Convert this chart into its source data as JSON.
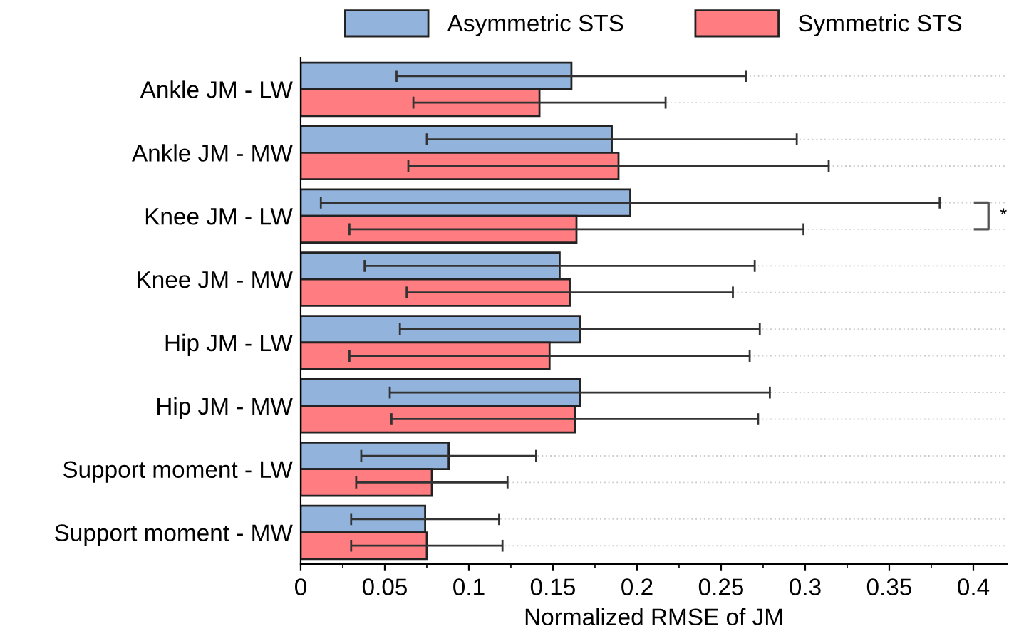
{
  "chart_data": {
    "type": "bar",
    "orientation": "horizontal",
    "xlabel": "Normalized RMSE of JM",
    "categories": [
      "Ankle JM - LW",
      "Ankle JM - MW",
      "Knee JM - LW",
      "Knee JM - MW",
      "Hip JM - LW",
      "Hip JM - MW",
      "Support moment - LW",
      "Support moment - MW"
    ],
    "series": [
      {
        "name": "Asymmetric STS",
        "color": "#92b4dc",
        "values": [
          0.161,
          0.185,
          0.196,
          0.154,
          0.166,
          0.166,
          0.088,
          0.074
        ],
        "errors": [
          0.104,
          0.11,
          0.184,
          0.116,
          0.107,
          0.113,
          0.052,
          0.044
        ]
      },
      {
        "name": "Symmetric STS",
        "color": "#ff7c80",
        "values": [
          0.142,
          0.189,
          0.164,
          0.16,
          0.148,
          0.163,
          0.078,
          0.075
        ],
        "errors": [
          0.075,
          0.125,
          0.135,
          0.097,
          0.119,
          0.109,
          0.045,
          0.045
        ]
      }
    ],
    "xlim": [
      0,
      0.42
    ],
    "xticks": [
      0,
      0.05,
      0.1,
      0.15,
      0.2,
      0.25,
      0.3,
      0.35,
      0.4
    ],
    "grid": "y",
    "legend": "top",
    "annotations": [
      "*"
    ]
  }
}
